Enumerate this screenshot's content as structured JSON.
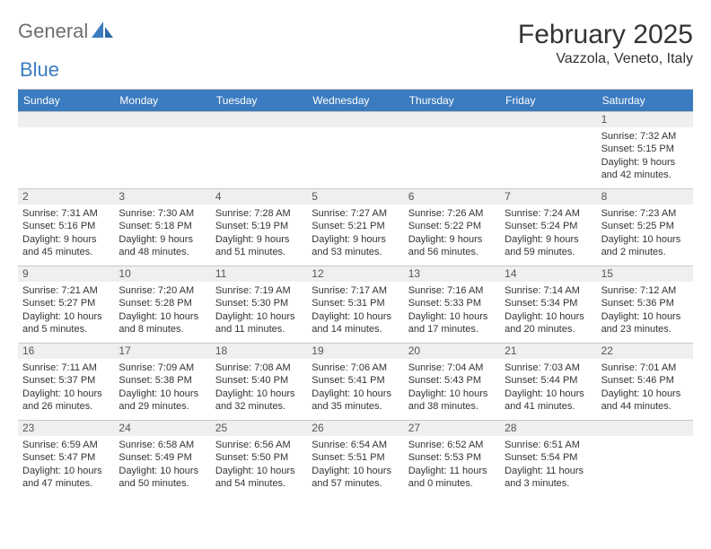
{
  "brand": {
    "word1": "General",
    "word2": "Blue"
  },
  "title": "February 2025",
  "location": "Vazzola, Veneto, Italy",
  "colors": {
    "header_bg": "#3b7bbf",
    "header_fg": "#ffffff",
    "daynum_bg": "#efefef",
    "border": "#c8c8c8",
    "logo_gray": "#6b6f73",
    "logo_blue": "#3b7bbf",
    "text": "#333333"
  },
  "day_names": [
    "Sunday",
    "Monday",
    "Tuesday",
    "Wednesday",
    "Thursday",
    "Friday",
    "Saturday"
  ],
  "weeks": [
    [
      {
        "n": "",
        "sunrise": "",
        "sunset": "",
        "daylight": ""
      },
      {
        "n": "",
        "sunrise": "",
        "sunset": "",
        "daylight": ""
      },
      {
        "n": "",
        "sunrise": "",
        "sunset": "",
        "daylight": ""
      },
      {
        "n": "",
        "sunrise": "",
        "sunset": "",
        "daylight": ""
      },
      {
        "n": "",
        "sunrise": "",
        "sunset": "",
        "daylight": ""
      },
      {
        "n": "",
        "sunrise": "",
        "sunset": "",
        "daylight": ""
      },
      {
        "n": "1",
        "sunrise": "Sunrise: 7:32 AM",
        "sunset": "Sunset: 5:15 PM",
        "daylight": "Daylight: 9 hours and 42 minutes."
      }
    ],
    [
      {
        "n": "2",
        "sunrise": "Sunrise: 7:31 AM",
        "sunset": "Sunset: 5:16 PM",
        "daylight": "Daylight: 9 hours and 45 minutes."
      },
      {
        "n": "3",
        "sunrise": "Sunrise: 7:30 AM",
        "sunset": "Sunset: 5:18 PM",
        "daylight": "Daylight: 9 hours and 48 minutes."
      },
      {
        "n": "4",
        "sunrise": "Sunrise: 7:28 AM",
        "sunset": "Sunset: 5:19 PM",
        "daylight": "Daylight: 9 hours and 51 minutes."
      },
      {
        "n": "5",
        "sunrise": "Sunrise: 7:27 AM",
        "sunset": "Sunset: 5:21 PM",
        "daylight": "Daylight: 9 hours and 53 minutes."
      },
      {
        "n": "6",
        "sunrise": "Sunrise: 7:26 AM",
        "sunset": "Sunset: 5:22 PM",
        "daylight": "Daylight: 9 hours and 56 minutes."
      },
      {
        "n": "7",
        "sunrise": "Sunrise: 7:24 AM",
        "sunset": "Sunset: 5:24 PM",
        "daylight": "Daylight: 9 hours and 59 minutes."
      },
      {
        "n": "8",
        "sunrise": "Sunrise: 7:23 AM",
        "sunset": "Sunset: 5:25 PM",
        "daylight": "Daylight: 10 hours and 2 minutes."
      }
    ],
    [
      {
        "n": "9",
        "sunrise": "Sunrise: 7:21 AM",
        "sunset": "Sunset: 5:27 PM",
        "daylight": "Daylight: 10 hours and 5 minutes."
      },
      {
        "n": "10",
        "sunrise": "Sunrise: 7:20 AM",
        "sunset": "Sunset: 5:28 PM",
        "daylight": "Daylight: 10 hours and 8 minutes."
      },
      {
        "n": "11",
        "sunrise": "Sunrise: 7:19 AM",
        "sunset": "Sunset: 5:30 PM",
        "daylight": "Daylight: 10 hours and 11 minutes."
      },
      {
        "n": "12",
        "sunrise": "Sunrise: 7:17 AM",
        "sunset": "Sunset: 5:31 PM",
        "daylight": "Daylight: 10 hours and 14 minutes."
      },
      {
        "n": "13",
        "sunrise": "Sunrise: 7:16 AM",
        "sunset": "Sunset: 5:33 PM",
        "daylight": "Daylight: 10 hours and 17 minutes."
      },
      {
        "n": "14",
        "sunrise": "Sunrise: 7:14 AM",
        "sunset": "Sunset: 5:34 PM",
        "daylight": "Daylight: 10 hours and 20 minutes."
      },
      {
        "n": "15",
        "sunrise": "Sunrise: 7:12 AM",
        "sunset": "Sunset: 5:36 PM",
        "daylight": "Daylight: 10 hours and 23 minutes."
      }
    ],
    [
      {
        "n": "16",
        "sunrise": "Sunrise: 7:11 AM",
        "sunset": "Sunset: 5:37 PM",
        "daylight": "Daylight: 10 hours and 26 minutes."
      },
      {
        "n": "17",
        "sunrise": "Sunrise: 7:09 AM",
        "sunset": "Sunset: 5:38 PM",
        "daylight": "Daylight: 10 hours and 29 minutes."
      },
      {
        "n": "18",
        "sunrise": "Sunrise: 7:08 AM",
        "sunset": "Sunset: 5:40 PM",
        "daylight": "Daylight: 10 hours and 32 minutes."
      },
      {
        "n": "19",
        "sunrise": "Sunrise: 7:06 AM",
        "sunset": "Sunset: 5:41 PM",
        "daylight": "Daylight: 10 hours and 35 minutes."
      },
      {
        "n": "20",
        "sunrise": "Sunrise: 7:04 AM",
        "sunset": "Sunset: 5:43 PM",
        "daylight": "Daylight: 10 hours and 38 minutes."
      },
      {
        "n": "21",
        "sunrise": "Sunrise: 7:03 AM",
        "sunset": "Sunset: 5:44 PM",
        "daylight": "Daylight: 10 hours and 41 minutes."
      },
      {
        "n": "22",
        "sunrise": "Sunrise: 7:01 AM",
        "sunset": "Sunset: 5:46 PM",
        "daylight": "Daylight: 10 hours and 44 minutes."
      }
    ],
    [
      {
        "n": "23",
        "sunrise": "Sunrise: 6:59 AM",
        "sunset": "Sunset: 5:47 PM",
        "daylight": "Daylight: 10 hours and 47 minutes."
      },
      {
        "n": "24",
        "sunrise": "Sunrise: 6:58 AM",
        "sunset": "Sunset: 5:49 PM",
        "daylight": "Daylight: 10 hours and 50 minutes."
      },
      {
        "n": "25",
        "sunrise": "Sunrise: 6:56 AM",
        "sunset": "Sunset: 5:50 PM",
        "daylight": "Daylight: 10 hours and 54 minutes."
      },
      {
        "n": "26",
        "sunrise": "Sunrise: 6:54 AM",
        "sunset": "Sunset: 5:51 PM",
        "daylight": "Daylight: 10 hours and 57 minutes."
      },
      {
        "n": "27",
        "sunrise": "Sunrise: 6:52 AM",
        "sunset": "Sunset: 5:53 PM",
        "daylight": "Daylight: 11 hours and 0 minutes."
      },
      {
        "n": "28",
        "sunrise": "Sunrise: 6:51 AM",
        "sunset": "Sunset: 5:54 PM",
        "daylight": "Daylight: 11 hours and 3 minutes."
      },
      {
        "n": "",
        "sunrise": "",
        "sunset": "",
        "daylight": ""
      }
    ]
  ]
}
